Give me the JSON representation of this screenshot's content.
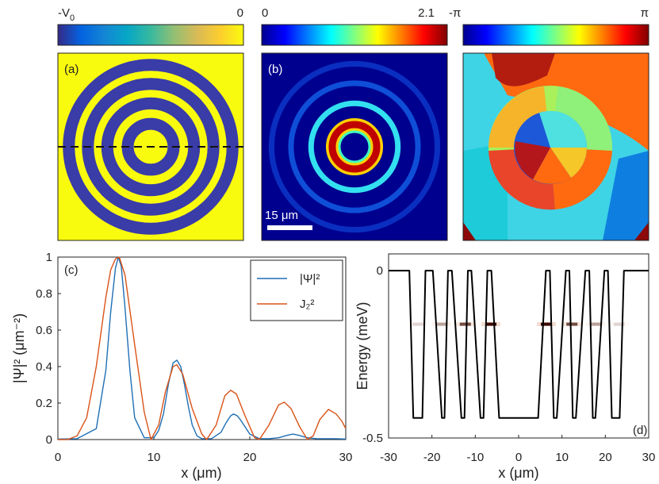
{
  "colorbars": [
    {
      "min_label": "-V",
      "min_sub": "0",
      "max_label": "0",
      "colormap": "parula"
    },
    {
      "min_label": "0",
      "max_label": "2.1",
      "colormap": "jet"
    },
    {
      "min_label": "-π",
      "max_label": "π",
      "colormap": "jet"
    }
  ],
  "panels": {
    "a": {
      "label": "(a)"
    },
    "b": {
      "label": "(b)",
      "scalebar": "15 μm"
    },
    "c": {
      "label": "(c)"
    },
    "d": {
      "label": "(d)"
    }
  },
  "chart_data": [
    {
      "type": "heatmap",
      "panel": "a",
      "description": "concentric-ring potential, yellow = 0, blue = -V0",
      "ring_radii_um": [
        6.5,
        12.3,
        17.8,
        23.2
      ],
      "outer_radius_um": 26,
      "dashed_cut": "y = 0"
    },
    {
      "type": "heatmap",
      "panel": "b",
      "description": "|Psi| intensity",
      "ring_peaks_um": [
        6.3,
        12.3,
        18.0,
        23.5
      ],
      "ring_strengths": [
        2.1,
        1.0,
        0.25,
        0.1
      ]
    },
    {
      "type": "heatmap",
      "panel": "phase",
      "description": "phase map, range -pi..pi"
    },
    {
      "type": "line",
      "panel": "c",
      "xlabel": "x (μm)",
      "ylabel": "|Ψ|² (μm⁻²)",
      "xlim": [
        0,
        30
      ],
      "ylim": [
        0,
        1
      ],
      "xticks": [
        "0",
        "10",
        "20",
        "30"
      ],
      "yticks": [
        "0",
        "0.2",
        "0.4",
        "0.6",
        "0.8",
        "1"
      ],
      "legend_position": "top-right",
      "series": [
        {
          "name": "|Ψ|²",
          "color": "#1f6fb4",
          "x": [
            0,
            2,
            4,
            5,
            5.5,
            6,
            6.3,
            6.6,
            7,
            7.5,
            8,
            9,
            10,
            10.5,
            11,
            11.5,
            12,
            12.4,
            12.8,
            13.2,
            13.6,
            14,
            14.5,
            15,
            16,
            17,
            17.5,
            18,
            18.3,
            18.7,
            19,
            19.5,
            20,
            21,
            22,
            23,
            24,
            24.5,
            25,
            26,
            27,
            28,
            29,
            30
          ],
          "y": [
            0.003,
            0.005,
            0.06,
            0.38,
            0.7,
            0.94,
            1.0,
            0.95,
            0.72,
            0.38,
            0.12,
            0.01,
            0.01,
            0.05,
            0.14,
            0.3,
            0.42,
            0.435,
            0.4,
            0.3,
            0.18,
            0.08,
            0.02,
            0.005,
            0.005,
            0.04,
            0.09,
            0.13,
            0.14,
            0.13,
            0.11,
            0.07,
            0.03,
            0.005,
            0.005,
            0.01,
            0.025,
            0.03,
            0.025,
            0.01,
            0.005,
            0.005,
            0.005,
            0.003
          ]
        },
        {
          "name": "J₂²",
          "color": "#d95319",
          "x": [
            0,
            1,
            2,
            3,
            4,
            5,
            5.5,
            6,
            6.4,
            7,
            8,
            9,
            9.7,
            10.5,
            11.2,
            12,
            12.4,
            13,
            14,
            15,
            15.5,
            16.5,
            17.4,
            18,
            18.6,
            19.5,
            20.5,
            21,
            22,
            23,
            23.6,
            24.3,
            25.2,
            26,
            26.6,
            27.3,
            28.2,
            29,
            29.6,
            30
          ],
          "y": [
            0,
            0.0,
            0.02,
            0.12,
            0.4,
            0.78,
            0.93,
            0.99,
            1.0,
            0.9,
            0.52,
            0.15,
            0.0,
            0.08,
            0.26,
            0.4,
            0.41,
            0.36,
            0.17,
            0.03,
            0.0,
            0.08,
            0.24,
            0.27,
            0.25,
            0.13,
            0.01,
            0.0,
            0.08,
            0.19,
            0.205,
            0.17,
            0.07,
            0.0,
            0.02,
            0.11,
            0.165,
            0.14,
            0.1,
            0.06
          ]
        }
      ]
    },
    {
      "type": "line",
      "panel": "d",
      "xlabel": "x (μm)",
      "ylabel": "Energy (meV)",
      "xlim": [
        -30,
        30
      ],
      "ylim": [
        -0.5,
        0.05
      ],
      "xticks": [
        "-30",
        "-20",
        "-10",
        "0",
        "10",
        "20",
        "30"
      ],
      "yticks": [
        "0",
        "-0.5"
      ],
      "series": [
        {
          "name": "potential profile",
          "color": "#000000",
          "x": [
            -30,
            -26,
            -25.2,
            -24.3,
            -23.3,
            -22.2,
            -21.5,
            -20.6,
            -19.8,
            -17.7,
            -17.1,
            -16.3,
            -15.4,
            -13.2,
            -12.5,
            -11.7,
            -10.9,
            -8.8,
            -8.1,
            -7.2,
            -6.3,
            -4.5,
            4.5,
            6.3,
            7.2,
            8.1,
            8.8,
            10.9,
            11.7,
            12.5,
            13.2,
            15.4,
            16.3,
            17.1,
            17.7,
            19.8,
            20.6,
            21.5,
            22.2,
            23.3,
            24.3,
            25.2,
            26,
            30
          ],
          "y": [
            0,
            0,
            0,
            -0.44,
            -0.44,
            -0.44,
            0,
            0,
            0,
            -0.44,
            -0.44,
            0,
            0,
            -0.44,
            -0.44,
            0,
            0,
            -0.44,
            -0.44,
            0,
            0,
            -0.44,
            -0.44,
            0,
            0,
            -0.44,
            -0.44,
            0,
            0,
            -0.44,
            -0.44,
            0,
            0,
            -0.44,
            -0.44,
            0,
            0,
            -0.44,
            -0.44,
            -0.44,
            0,
            0,
            0,
            0
          ]
        }
      ],
      "state_energy_meV": -0.16,
      "state_peaks_x_um": [
        -23.2,
        -17.8,
        -12.3,
        -6.4,
        6.4,
        12.3,
        17.8,
        23.2
      ],
      "state_peak_strengths": [
        0.15,
        0.35,
        0.7,
        1.0,
        1.0,
        0.7,
        0.35,
        0.15
      ]
    }
  ]
}
